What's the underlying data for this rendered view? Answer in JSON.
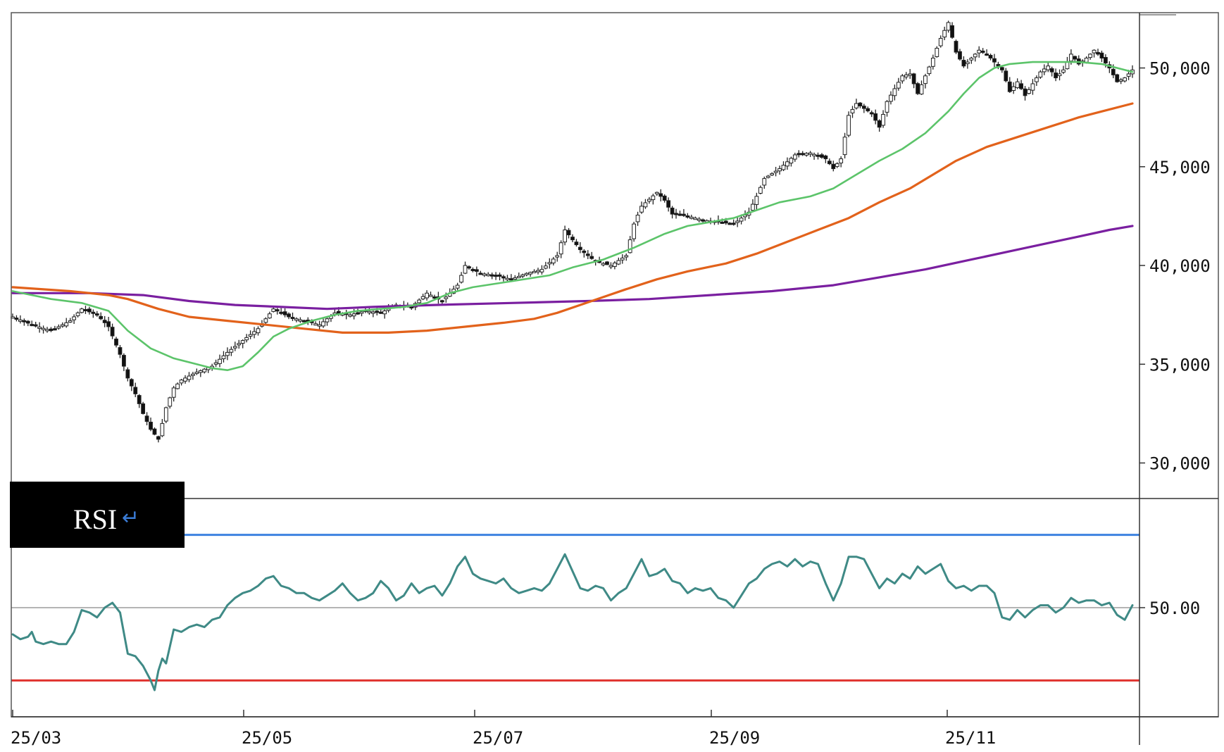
{
  "chart_data": {
    "type": "candlestick",
    "price_axis": {
      "ticks": [
        30000,
        35000,
        40000,
        45000,
        50000
      ],
      "tick_labels": [
        "30,000",
        "35,000",
        "40,000",
        "45,000",
        "50,000"
      ],
      "range": [
        28200,
        52800
      ]
    },
    "rsi_axis": {
      "ticks": [
        50
      ],
      "tick_labels": [
        "50.00"
      ],
      "upper_band": 80,
      "lower_band": 20,
      "range": [
        5,
        95
      ]
    },
    "x_axis": {
      "labels": [
        "25/03",
        "25/05",
        "25/07",
        "25/09",
        "25/11"
      ]
    },
    "panel_label": "RSI",
    "panel_label_arrow": "↵",
    "colors": {
      "ma_short": "#5cc46a",
      "ma_mid": "#e2621b",
      "ma_long": "#7a1fa0",
      "rsi_line": "#3f8a86",
      "upper_band": "#3d82e0",
      "lower_band": "#e0322e",
      "mid_band": "#b5b5b5"
    },
    "close_path": [
      [
        0,
        37400
      ],
      [
        5,
        37000
      ],
      [
        10,
        36700
      ],
      [
        15,
        37200
      ],
      [
        18,
        37800
      ],
      [
        22,
        37500
      ],
      [
        25,
        36900
      ],
      [
        28,
        35500
      ],
      [
        30,
        34300
      ],
      [
        32,
        33500
      ],
      [
        34,
        32500
      ],
      [
        36,
        31700
      ],
      [
        38,
        31200
      ],
      [
        40,
        32800
      ],
      [
        42,
        33800
      ],
      [
        44,
        34200
      ],
      [
        48,
        34600
      ],
      [
        52,
        34900
      ],
      [
        56,
        35600
      ],
      [
        60,
        36200
      ],
      [
        64,
        36800
      ],
      [
        68,
        37800
      ],
      [
        72,
        37400
      ],
      [
        76,
        37200
      ],
      [
        80,
        37000
      ],
      [
        84,
        37600
      ],
      [
        88,
        37500
      ],
      [
        92,
        37700
      ],
      [
        96,
        37600
      ],
      [
        100,
        38000
      ],
      [
        104,
        37900
      ],
      [
        108,
        38600
      ],
      [
        112,
        38200
      ],
      [
        116,
        39000
      ],
      [
        118,
        40000
      ],
      [
        122,
        39600
      ],
      [
        126,
        39500
      ],
      [
        130,
        39300
      ],
      [
        134,
        39600
      ],
      [
        138,
        39800
      ],
      [
        142,
        40500
      ],
      [
        144,
        41800
      ],
      [
        148,
        40800
      ],
      [
        152,
        40200
      ],
      [
        156,
        40000
      ],
      [
        160,
        40500
      ],
      [
        162,
        42100
      ],
      [
        164,
        43000
      ],
      [
        168,
        43700
      ],
      [
        170,
        43300
      ],
      [
        172,
        42600
      ],
      [
        176,
        42500
      ],
      [
        180,
        42300
      ],
      [
        184,
        42200
      ],
      [
        188,
        42100
      ],
      [
        192,
        42700
      ],
      [
        194,
        43500
      ],
      [
        196,
        44400
      ],
      [
        200,
        44900
      ],
      [
        204,
        45600
      ],
      [
        208,
        45700
      ],
      [
        212,
        45400
      ],
      [
        214,
        44900
      ],
      [
        216,
        45400
      ],
      [
        218,
        47600
      ],
      [
        220,
        48200
      ],
      [
        224,
        47700
      ],
      [
        226,
        47000
      ],
      [
        228,
        48300
      ],
      [
        232,
        49600
      ],
      [
        234,
        49700
      ],
      [
        236,
        48700
      ],
      [
        240,
        50500
      ],
      [
        242,
        51500
      ],
      [
        244,
        52300
      ],
      [
        246,
        50800
      ],
      [
        248,
        50100
      ],
      [
        250,
        50500
      ],
      [
        252,
        50900
      ],
      [
        254,
        50700
      ],
      [
        256,
        50300
      ],
      [
        258,
        49900
      ],
      [
        260,
        48800
      ],
      [
        262,
        49300
      ],
      [
        264,
        48600
      ],
      [
        266,
        49200
      ],
      [
        268,
        49800
      ],
      [
        270,
        50100
      ],
      [
        272,
        49500
      ],
      [
        274,
        49900
      ],
      [
        276,
        50700
      ],
      [
        278,
        50200
      ],
      [
        280,
        50500
      ],
      [
        282,
        50900
      ],
      [
        284,
        50500
      ],
      [
        286,
        50000
      ],
      [
        288,
        49300
      ],
      [
        290,
        49500
      ],
      [
        292,
        49900
      ]
    ],
    "ma_short": [
      [
        0,
        38700
      ],
      [
        10,
        38300
      ],
      [
        18,
        38100
      ],
      [
        25,
        37700
      ],
      [
        30,
        36700
      ],
      [
        36,
        35800
      ],
      [
        42,
        35300
      ],
      [
        48,
        35000
      ],
      [
        52,
        34800
      ],
      [
        56,
        34700
      ],
      [
        60,
        34900
      ],
      [
        64,
        35600
      ],
      [
        68,
        36400
      ],
      [
        72,
        36800
      ],
      [
        78,
        37200
      ],
      [
        84,
        37500
      ],
      [
        90,
        37700
      ],
      [
        96,
        37800
      ],
      [
        102,
        37900
      ],
      [
        108,
        38100
      ],
      [
        114,
        38600
      ],
      [
        120,
        38900
      ],
      [
        130,
        39200
      ],
      [
        140,
        39500
      ],
      [
        146,
        39900
      ],
      [
        154,
        40300
      ],
      [
        162,
        40900
      ],
      [
        170,
        41600
      ],
      [
        176,
        42000
      ],
      [
        182,
        42200
      ],
      [
        188,
        42400
      ],
      [
        194,
        42800
      ],
      [
        200,
        43200
      ],
      [
        208,
        43500
      ],
      [
        214,
        43900
      ],
      [
        220,
        44600
      ],
      [
        226,
        45300
      ],
      [
        232,
        45900
      ],
      [
        238,
        46700
      ],
      [
        244,
        47800
      ],
      [
        248,
        48700
      ],
      [
        252,
        49500
      ],
      [
        256,
        50000
      ],
      [
        260,
        50200
      ],
      [
        266,
        50300
      ],
      [
        272,
        50300
      ],
      [
        278,
        50300
      ],
      [
        284,
        50200
      ],
      [
        288,
        50000
      ],
      [
        292,
        49800
      ]
    ],
    "ma_mid": [
      [
        0,
        38900
      ],
      [
        15,
        38700
      ],
      [
        25,
        38500
      ],
      [
        30,
        38300
      ],
      [
        38,
        37800
      ],
      [
        46,
        37400
      ],
      [
        56,
        37200
      ],
      [
        66,
        37000
      ],
      [
        76,
        36800
      ],
      [
        86,
        36600
      ],
      [
        98,
        36600
      ],
      [
        108,
        36700
      ],
      [
        118,
        36900
      ],
      [
        128,
        37100
      ],
      [
        136,
        37300
      ],
      [
        142,
        37600
      ],
      [
        148,
        38000
      ],
      [
        154,
        38400
      ],
      [
        160,
        38800
      ],
      [
        168,
        39300
      ],
      [
        176,
        39700
      ],
      [
        186,
        40100
      ],
      [
        194,
        40600
      ],
      [
        202,
        41200
      ],
      [
        210,
        41800
      ],
      [
        218,
        42400
      ],
      [
        226,
        43200
      ],
      [
        234,
        43900
      ],
      [
        240,
        44600
      ],
      [
        246,
        45300
      ],
      [
        254,
        46000
      ],
      [
        262,
        46500
      ],
      [
        270,
        47000
      ],
      [
        278,
        47500
      ],
      [
        286,
        47900
      ],
      [
        292,
        48200
      ]
    ],
    "ma_long": [
      [
        0,
        38600
      ],
      [
        20,
        38600
      ],
      [
        34,
        38500
      ],
      [
        46,
        38200
      ],
      [
        58,
        38000
      ],
      [
        70,
        37900
      ],
      [
        82,
        37800
      ],
      [
        94,
        37900
      ],
      [
        110,
        38000
      ],
      [
        130,
        38100
      ],
      [
        150,
        38200
      ],
      [
        166,
        38300
      ],
      [
        182,
        38500
      ],
      [
        198,
        38700
      ],
      [
        214,
        39000
      ],
      [
        226,
        39400
      ],
      [
        238,
        39800
      ],
      [
        250,
        40300
      ],
      [
        262,
        40800
      ],
      [
        274,
        41300
      ],
      [
        286,
        41800
      ],
      [
        292,
        42000
      ]
    ],
    "rsi": [
      [
        0,
        39
      ],
      [
        2,
        37
      ],
      [
        4,
        38
      ],
      [
        5,
        40
      ],
      [
        6,
        36
      ],
      [
        8,
        35
      ],
      [
        10,
        36
      ],
      [
        12,
        35
      ],
      [
        14,
        35
      ],
      [
        16,
        40
      ],
      [
        18,
        49
      ],
      [
        20,
        48
      ],
      [
        22,
        46
      ],
      [
        24,
        50
      ],
      [
        26,
        52
      ],
      [
        28,
        48
      ],
      [
        30,
        31
      ],
      [
        32,
        30
      ],
      [
        34,
        26
      ],
      [
        36,
        20
      ],
      [
        37,
        16
      ],
      [
        38,
        24
      ],
      [
        39,
        29
      ],
      [
        40,
        27
      ],
      [
        42,
        41
      ],
      [
        44,
        40
      ],
      [
        46,
        42
      ],
      [
        48,
        43
      ],
      [
        50,
        42
      ],
      [
        52,
        45
      ],
      [
        54,
        46
      ],
      [
        56,
        51
      ],
      [
        58,
        54
      ],
      [
        60,
        56
      ],
      [
        62,
        57
      ],
      [
        64,
        59
      ],
      [
        66,
        62
      ],
      [
        68,
        63
      ],
      [
        70,
        59
      ],
      [
        72,
        58
      ],
      [
        74,
        56
      ],
      [
        76,
        56
      ],
      [
        78,
        54
      ],
      [
        80,
        53
      ],
      [
        82,
        55
      ],
      [
        84,
        57
      ],
      [
        86,
        60
      ],
      [
        88,
        56
      ],
      [
        90,
        53
      ],
      [
        92,
        54
      ],
      [
        94,
        56
      ],
      [
        96,
        61
      ],
      [
        98,
        58
      ],
      [
        100,
        53
      ],
      [
        102,
        55
      ],
      [
        104,
        60
      ],
      [
        106,
        56
      ],
      [
        108,
        58
      ],
      [
        110,
        59
      ],
      [
        112,
        55
      ],
      [
        114,
        60
      ],
      [
        116,
        67
      ],
      [
        118,
        71
      ],
      [
        120,
        64
      ],
      [
        122,
        62
      ],
      [
        124,
        61
      ],
      [
        126,
        60
      ],
      [
        128,
        62
      ],
      [
        130,
        58
      ],
      [
        132,
        56
      ],
      [
        134,
        57
      ],
      [
        136,
        58
      ],
      [
        138,
        57
      ],
      [
        140,
        60
      ],
      [
        142,
        66
      ],
      [
        144,
        72
      ],
      [
        146,
        65
      ],
      [
        148,
        58
      ],
      [
        150,
        57
      ],
      [
        152,
        59
      ],
      [
        154,
        58
      ],
      [
        156,
        53
      ],
      [
        158,
        56
      ],
      [
        160,
        58
      ],
      [
        162,
        64
      ],
      [
        164,
        70
      ],
      [
        166,
        63
      ],
      [
        168,
        64
      ],
      [
        170,
        66
      ],
      [
        172,
        61
      ],
      [
        174,
        60
      ],
      [
        176,
        56
      ],
      [
        178,
        58
      ],
      [
        180,
        57
      ],
      [
        182,
        58
      ],
      [
        184,
        54
      ],
      [
        186,
        53
      ],
      [
        188,
        50
      ],
      [
        190,
        55
      ],
      [
        192,
        60
      ],
      [
        194,
        62
      ],
      [
        196,
        66
      ],
      [
        198,
        68
      ],
      [
        200,
        69
      ],
      [
        202,
        67
      ],
      [
        204,
        70
      ],
      [
        206,
        67
      ],
      [
        208,
        69
      ],
      [
        210,
        68
      ],
      [
        212,
        60
      ],
      [
        214,
        53
      ],
      [
        216,
        60
      ],
      [
        218,
        71
      ],
      [
        220,
        71
      ],
      [
        222,
        70
      ],
      [
        224,
        64
      ],
      [
        226,
        58
      ],
      [
        228,
        62
      ],
      [
        230,
        60
      ],
      [
        232,
        64
      ],
      [
        234,
        62
      ],
      [
        236,
        67
      ],
      [
        238,
        64
      ],
      [
        240,
        66
      ],
      [
        242,
        68
      ],
      [
        244,
        61
      ],
      [
        246,
        58
      ],
      [
        248,
        59
      ],
      [
        250,
        57
      ],
      [
        252,
        59
      ],
      [
        254,
        59
      ],
      [
        256,
        56
      ],
      [
        258,
        46
      ],
      [
        260,
        45
      ],
      [
        262,
        49
      ],
      [
        264,
        46
      ],
      [
        266,
        49
      ],
      [
        268,
        51
      ],
      [
        270,
        51
      ],
      [
        272,
        48
      ],
      [
        274,
        50
      ],
      [
        276,
        54
      ],
      [
        278,
        52
      ],
      [
        280,
        53
      ],
      [
        282,
        53
      ],
      [
        284,
        51
      ],
      [
        286,
        52
      ],
      [
        288,
        47
      ],
      [
        290,
        45
      ],
      [
        292,
        51
      ]
    ]
  }
}
